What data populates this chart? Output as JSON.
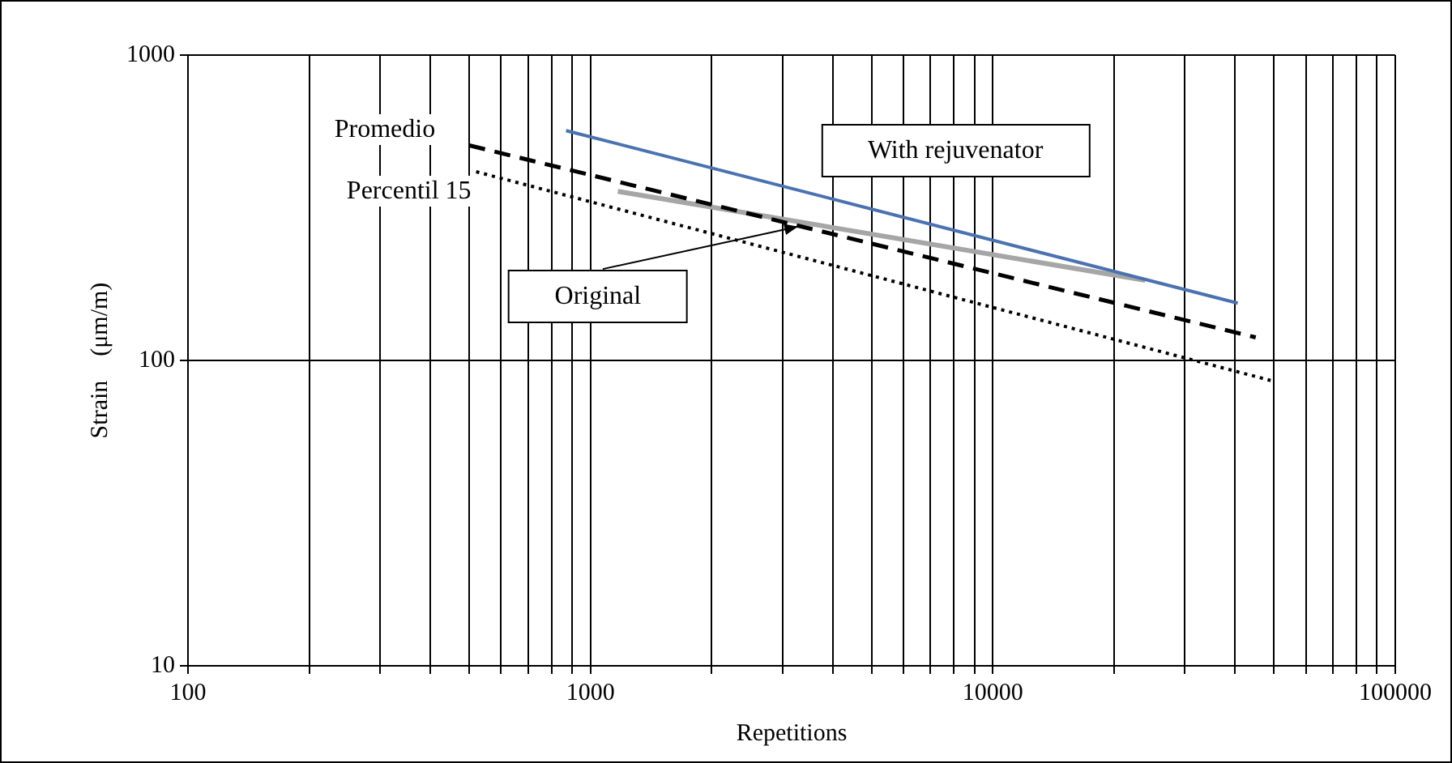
{
  "chart_data": {
    "type": "line",
    "xlabel": "Repetitions",
    "ylabel": "Strain    (μm/m)",
    "log": "xy",
    "grid": true,
    "marker": "none",
    "xlim": [
      100,
      100000
    ],
    "ylim": [
      10,
      1000
    ],
    "xticks": [
      100,
      {
        "value": 200,
        "label": null
      },
      {
        "value": 300,
        "label": null
      },
      {
        "value": 400,
        "label": null
      },
      {
        "value": 500,
        "label": null
      },
      {
        "value": 600,
        "label": null
      },
      {
        "value": 700,
        "label": null
      },
      {
        "value": 800,
        "label": null
      },
      {
        "value": 900,
        "label": null
      },
      1000,
      {
        "value": 2000,
        "label": null
      },
      {
        "value": 3000,
        "label": null
      },
      {
        "value": 4000,
        "label": null
      },
      {
        "value": 5000,
        "label": null
      },
      {
        "value": 6000,
        "label": null
      },
      {
        "value": 7000,
        "label": null
      },
      {
        "value": 8000,
        "label": null
      },
      {
        "value": 9000,
        "label": null
      },
      10000,
      {
        "value": 20000,
        "label": null
      },
      {
        "value": 30000,
        "label": null
      },
      {
        "value": 40000,
        "label": null
      },
      {
        "value": 50000,
        "label": null
      },
      {
        "value": 60000,
        "label": null
      },
      {
        "value": 70000,
        "label": null
      },
      {
        "value": 80000,
        "label": null
      },
      {
        "value": 90000,
        "label": null
      },
      100000
    ],
    "yticks": [
      10,
      100,
      1000
    ],
    "series": [
      {
        "name": "With rejuvenator",
        "color": "#4a72b0",
        "line_style": "solid",
        "x": [
          870,
          40600
        ],
        "values": [
          566,
          154
        ]
      },
      {
        "name": "Promedio",
        "color": "#000000",
        "line_style": "dashed",
        "x": [
          500,
          45000
        ],
        "values": [
          506,
          119
        ]
      },
      {
        "name": "Percentil 15",
        "color": "#000000",
        "line_style": "dotted",
        "x": [
          520,
          49000
        ],
        "values": [
          415,
          86
        ]
      },
      {
        "name": "Original",
        "color": "#a6a6a6",
        "line_style": "solid",
        "x": [
          1170,
          23900
        ],
        "values": [
          358,
          183
        ]
      }
    ]
  }
}
